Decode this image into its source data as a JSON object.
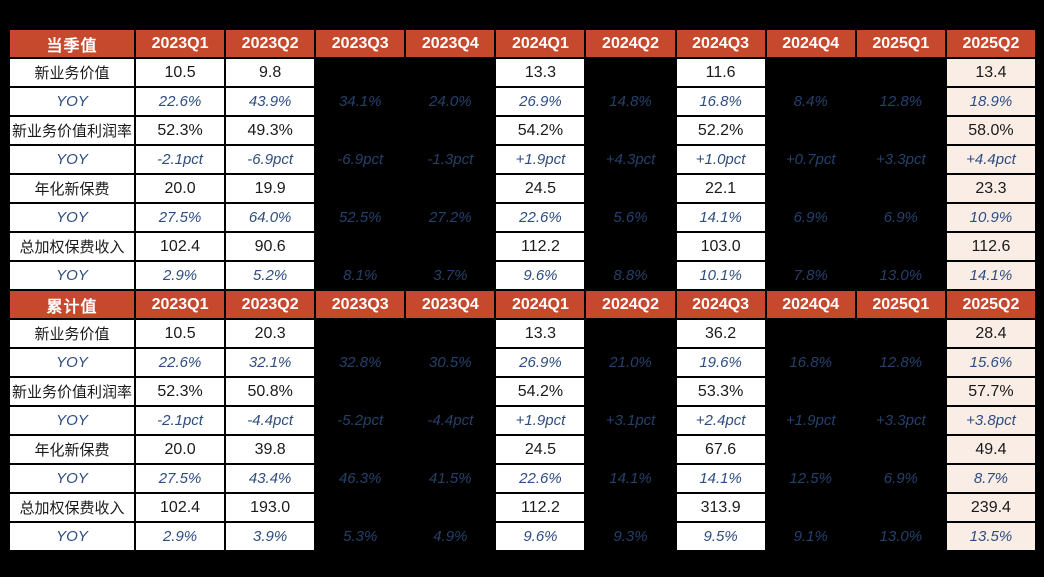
{
  "page": {
    "background": "#000000"
  },
  "colors": {
    "header_bg": "#C6492E",
    "header_text": "#FFFFFF",
    "cell_white_bg": "#FFFFFF",
    "cell_dark_bg": "#000000",
    "cell_pink_bg": "#FAEDE5",
    "value_text": "#1A1A1A",
    "yoy_text": "#2E4D80",
    "yoy_text_on_dark": "#26406B",
    "border": "#000000"
  },
  "chart_data": [
    {
      "type": "table",
      "title": "当季值",
      "columns": [
        "2023Q1",
        "2023Q2",
        "2023Q3",
        "2023Q4",
        "2024Q1",
        "2024Q2",
        "2024Q3",
        "2024Q4",
        "2025Q1",
        "2025Q2"
      ],
      "column_styles": [
        "white",
        "white",
        "dark",
        "dark",
        "white",
        "dark",
        "white",
        "dark",
        "dark",
        "pink"
      ],
      "rows": [
        {
          "label": "新业务价值",
          "kind": "value",
          "cells": [
            "10.5",
            "9.8",
            "",
            "",
            "13.3",
            "",
            "11.6",
            "",
            "",
            "13.4"
          ]
        },
        {
          "label": "YOY",
          "kind": "yoy",
          "cells": [
            "22.6%",
            "43.9%",
            "34.1%",
            "24.0%",
            "26.9%",
            "14.8%",
            "16.8%",
            "8.4%",
            "12.8%",
            "18.9%"
          ]
        },
        {
          "label": "新业务价值利润率",
          "kind": "value",
          "cells": [
            "52.3%",
            "49.3%",
            "",
            "",
            "54.2%",
            "",
            "52.2%",
            "",
            "",
            "58.0%"
          ]
        },
        {
          "label": "YOY",
          "kind": "yoy",
          "cells": [
            "-2.1pct",
            "-6.9pct",
            "-6.9pct",
            "-1.3pct",
            "+1.9pct",
            "+4.3pct",
            "+1.0pct",
            "+0.7pct",
            "+3.3pct",
            "+4.4pct"
          ]
        },
        {
          "label": "年化新保费",
          "kind": "value",
          "cells": [
            "20.0",
            "19.9",
            "",
            "",
            "24.5",
            "",
            "22.1",
            "",
            "",
            "23.3"
          ]
        },
        {
          "label": "YOY",
          "kind": "yoy",
          "cells": [
            "27.5%",
            "64.0%",
            "52.5%",
            "27.2%",
            "22.6%",
            "5.6%",
            "14.1%",
            "6.9%",
            "6.9%",
            "10.9%"
          ]
        },
        {
          "label": "总加权保费收入",
          "kind": "value",
          "cells": [
            "102.4",
            "90.6",
            "",
            "",
            "112.2",
            "",
            "103.0",
            "",
            "",
            "112.6"
          ]
        },
        {
          "label": "YOY",
          "kind": "yoy",
          "cells": [
            "2.9%",
            "5.2%",
            "8.1%",
            "3.7%",
            "9.6%",
            "8.8%",
            "10.1%",
            "7.8%",
            "13.0%",
            "14.1%"
          ]
        }
      ]
    },
    {
      "type": "table",
      "title": "累计值",
      "columns": [
        "2023Q1",
        "2023Q2",
        "2023Q3",
        "2023Q4",
        "2024Q1",
        "2024Q2",
        "2024Q3",
        "2024Q4",
        "2025Q1",
        "2025Q2"
      ],
      "column_styles": [
        "white",
        "white",
        "dark",
        "dark",
        "white",
        "dark",
        "white",
        "dark",
        "dark",
        "pink"
      ],
      "rows": [
        {
          "label": "新业务价值",
          "kind": "value",
          "cells": [
            "10.5",
            "20.3",
            "",
            "",
            "13.3",
            "",
            "36.2",
            "",
            "",
            "28.4"
          ]
        },
        {
          "label": "YOY",
          "kind": "yoy",
          "cells": [
            "22.6%",
            "32.1%",
            "32.8%",
            "30.5%",
            "26.9%",
            "21.0%",
            "19.6%",
            "16.8%",
            "12.8%",
            "15.6%"
          ]
        },
        {
          "label": "新业务价值利润率",
          "kind": "value",
          "cells": [
            "52.3%",
            "50.8%",
            "",
            "",
            "54.2%",
            "",
            "53.3%",
            "",
            "",
            "57.7%"
          ]
        },
        {
          "label": "YOY",
          "kind": "yoy",
          "cells": [
            "-2.1pct",
            "-4.4pct",
            "-5.2pct",
            "-4.4pct",
            "+1.9pct",
            "+3.1pct",
            "+2.4pct",
            "+1.9pct",
            "+3.3pct",
            "+3.8pct"
          ]
        },
        {
          "label": "年化新保费",
          "kind": "value",
          "cells": [
            "20.0",
            "39.8",
            "",
            "",
            "24.5",
            "",
            "67.6",
            "",
            "",
            "49.4"
          ]
        },
        {
          "label": "YOY",
          "kind": "yoy",
          "cells": [
            "27.5%",
            "43.4%",
            "46.3%",
            "41.5%",
            "22.6%",
            "14.1%",
            "14.1%",
            "12.5%",
            "6.9%",
            "8.7%"
          ]
        },
        {
          "label": "总加权保费收入",
          "kind": "value",
          "cells": [
            "102.4",
            "193.0",
            "",
            "",
            "112.2",
            "",
            "313.9",
            "",
            "",
            "239.4"
          ]
        },
        {
          "label": "YOY",
          "kind": "yoy",
          "cells": [
            "2.9%",
            "3.9%",
            "5.3%",
            "4.9%",
            "9.6%",
            "9.3%",
            "9.5%",
            "9.1%",
            "13.0%",
            "13.5%"
          ]
        }
      ]
    }
  ]
}
